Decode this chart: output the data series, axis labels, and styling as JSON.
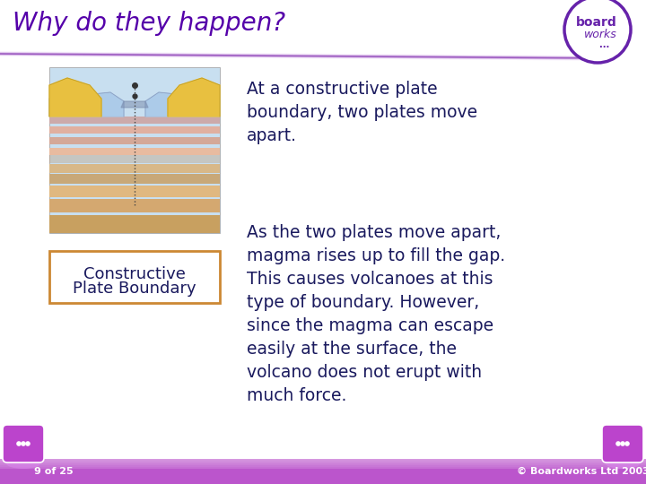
{
  "title": "Why do they happen?",
  "title_color": "#5500aa",
  "title_fontsize": 20,
  "bg_color": "#ffffff",
  "text1_lines": [
    "At a constructive plate",
    "boundary, two plates move",
    "apart."
  ],
  "text2_lines": [
    "As the two plates move apart,",
    "magma rises up to fill the gap.",
    "This causes volcanoes at this",
    "type of boundary. However,",
    "since the magma can escape",
    "easily at the surface, the",
    "volcano does not erupt with",
    "much force."
  ],
  "label_line1": "Constructive",
  "label_line2": "Plate Boundary",
  "label_border_color": "#cc8833",
  "body_text_color": "#1a1a5e",
  "footer_left": "9 of 25",
  "footer_right": "© Boardworks Ltd 2003",
  "footer_bg": "#bb55cc",
  "logo_circle_color": "#6622aa",
  "logo_text_color": "#6622aa",
  "header_swoosh_colors": [
    "#ccaadd",
    "#9955bb",
    "#7722aa"
  ],
  "nav_btn_color": "#bb44cc",
  "nav_btn_shadow": "#dd88ee"
}
